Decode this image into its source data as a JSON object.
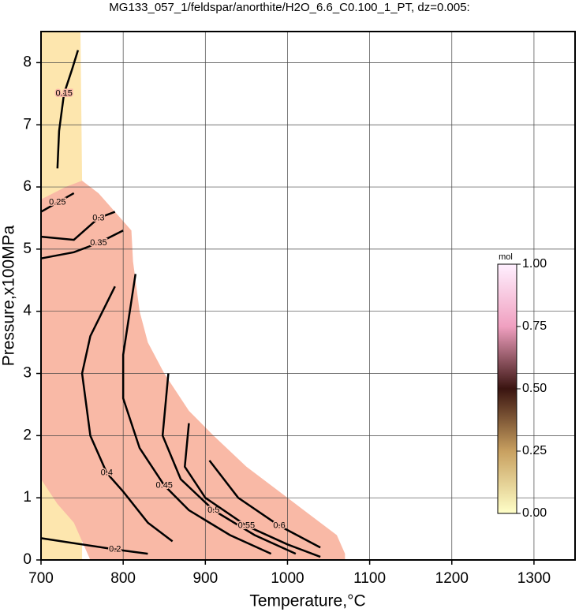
{
  "chart_data": {
    "type": "contour",
    "title": "MG133_057_1/feldspar/anorthite/H2O_6.6_C0.100_1_PT, dz=0.005:",
    "xlabel": "Temperature,°C",
    "ylabel": "Pressure,x100MPa",
    "xlim": [
      700,
      1350
    ],
    "ylim": [
      0,
      8.5
    ],
    "xticks": [
      700,
      800,
      900,
      1000,
      1100,
      1200,
      1300
    ],
    "yticks": [
      0,
      1,
      2,
      3,
      4,
      5,
      6,
      7,
      8
    ],
    "grid": true,
    "regions": [
      {
        "color": "#fde6ae",
        "x": [
          700,
          748,
          750,
          750,
          700
        ],
        "y": [
          8.5,
          8.5,
          6.1,
          0,
          0
        ]
      },
      {
        "color": "#f9b9a6",
        "x": [
          700,
          730,
          750,
          770,
          790,
          810,
          812,
          820,
          830,
          850,
          880,
          910,
          950,
          990,
          1030,
          1060,
          1070,
          1070,
          760,
          740,
          720,
          700
        ],
        "y": [
          5.8,
          6.0,
          6.1,
          5.9,
          5.6,
          5.3,
          4.8,
          4.0,
          3.5,
          3.0,
          2.4,
          2.0,
          1.5,
          1.1,
          0.7,
          0.4,
          0.1,
          0,
          0,
          0.6,
          0.9,
          1.3
        ]
      }
    ],
    "contours": [
      {
        "level": 0.15,
        "x": [
          745,
          738,
          728,
          722,
          720
        ],
        "y": [
          8.2,
          7.9,
          7.5,
          6.9,
          6.3
        ]
      },
      {
        "level": 0.25,
        "x": [
          700,
          720,
          740
        ],
        "y": [
          5.6,
          5.75,
          5.9
        ]
      },
      {
        "level": 0.3,
        "x": [
          700,
          740,
          770,
          790
        ],
        "y": [
          5.2,
          5.15,
          5.5,
          5.6
        ]
      },
      {
        "level": 0.35,
        "x": [
          700,
          740,
          770,
          800
        ],
        "y": [
          4.85,
          4.95,
          5.1,
          5.3
        ]
      },
      {
        "level": 0.2,
        "x": [
          700,
          740,
          790,
          830
        ],
        "y": [
          0.35,
          0.27,
          0.17,
          0.1
        ]
      },
      {
        "level": 0.4,
        "x": [
          790,
          760,
          750,
          760,
          780,
          800,
          830,
          860
        ],
        "y": [
          4.4,
          3.6,
          3.0,
          2.0,
          1.4,
          1.1,
          0.6,
          0.3
        ]
      },
      {
        "level": 0.45,
        "x": [
          815,
          800,
          800,
          820,
          850,
          880,
          930,
          980
        ],
        "y": [
          4.6,
          3.3,
          2.6,
          1.8,
          1.2,
          0.8,
          0.4,
          0.1
        ]
      },
      {
        "level": 0.5,
        "x": [
          855,
          848,
          870,
          910,
          960,
          1010
        ],
        "y": [
          3.0,
          2.0,
          1.3,
          0.8,
          0.4,
          0.1
        ]
      },
      {
        "level": 0.55,
        "x": [
          880,
          875,
          900,
          950,
          1000,
          1040
        ],
        "y": [
          2.2,
          1.5,
          1.0,
          0.55,
          0.25,
          0.05
        ]
      },
      {
        "level": 0.6,
        "x": [
          905,
          940,
          990,
          1040
        ],
        "y": [
          1.6,
          1.0,
          0.55,
          0.2
        ]
      }
    ],
    "colorbar": {
      "label": "mol",
      "lim": [
        0,
        1
      ],
      "colors": [
        "#ffffc8",
        "#c8a060",
        "#3a1410",
        "#f0a0c0",
        "#fff0ff"
      ],
      "ticks": [
        {
          "value": 0,
          "label": "0.00"
        },
        {
          "value": 0.25,
          "label": "0.25"
        },
        {
          "value": 0.5,
          "label": "0.50"
        },
        {
          "value": 0.75,
          "label": "0.75"
        },
        {
          "value": 1,
          "label": "1.00"
        }
      ]
    }
  }
}
